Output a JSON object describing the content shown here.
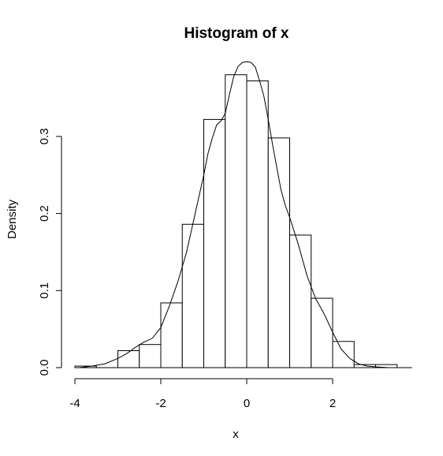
{
  "chart_data": {
    "type": "bar",
    "title": "Histogram of x",
    "xlabel": "x",
    "ylabel": "Density",
    "xlim": [
      -4,
      4
    ],
    "ylim": [
      0,
      0.4
    ],
    "x_ticks": [
      -4,
      -2,
      0,
      2
    ],
    "x_tick_labels": [
      "-4",
      "-2",
      "0",
      "2"
    ],
    "y_ticks": [
      0.0,
      0.1,
      0.2,
      0.3
    ],
    "y_tick_labels": [
      "0.0",
      "0.1",
      "0.2",
      "0.3"
    ],
    "grid": false,
    "bins": [
      {
        "x0": -4.0,
        "x1": -3.5,
        "density": 0.002
      },
      {
        "x0": -3.5,
        "x1": -3.0,
        "density": 0.0
      },
      {
        "x0": -3.0,
        "x1": -2.5,
        "density": 0.022
      },
      {
        "x0": -2.5,
        "x1": -2.0,
        "density": 0.03
      },
      {
        "x0": -2.0,
        "x1": -1.5,
        "density": 0.084
      },
      {
        "x0": -1.5,
        "x1": -1.0,
        "density": 0.186
      },
      {
        "x0": -1.0,
        "x1": -0.5,
        "density": 0.322
      },
      {
        "x0": -0.5,
        "x1": 0.0,
        "density": 0.38
      },
      {
        "x0": 0.0,
        "x1": 0.5,
        "density": 0.372
      },
      {
        "x0": 0.5,
        "x1": 1.0,
        "density": 0.298
      },
      {
        "x0": 1.0,
        "x1": 1.5,
        "density": 0.172
      },
      {
        "x0": 1.5,
        "x1": 2.0,
        "density": 0.09
      },
      {
        "x0": 2.0,
        "x1": 2.5,
        "density": 0.034
      },
      {
        "x0": 2.5,
        "x1": 3.0,
        "density": 0.004
      },
      {
        "x0": 3.0,
        "x1": 3.5,
        "density": 0.004
      }
    ],
    "density_curve": {
      "x": [
        -3.9,
        -3.6,
        -3.3,
        -3.0,
        -2.8,
        -2.6,
        -2.4,
        -2.2,
        -2.0,
        -1.8,
        -1.6,
        -1.4,
        -1.2,
        -1.0,
        -0.9,
        -0.8,
        -0.7,
        -0.6,
        -0.5,
        -0.4,
        -0.3,
        -0.2,
        -0.1,
        0.0,
        0.1,
        0.2,
        0.3,
        0.4,
        0.5,
        0.6,
        0.7,
        0.8,
        0.9,
        1.0,
        1.2,
        1.4,
        1.6,
        1.8,
        2.0,
        2.2,
        2.4,
        2.6,
        2.8,
        3.0,
        3.3,
        3.6
      ],
      "y": [
        0.0,
        0.002,
        0.005,
        0.012,
        0.018,
        0.026,
        0.033,
        0.038,
        0.052,
        0.08,
        0.112,
        0.15,
        0.2,
        0.25,
        0.278,
        0.298,
        0.315,
        0.32,
        0.33,
        0.355,
        0.378,
        0.391,
        0.396,
        0.397,
        0.396,
        0.39,
        0.372,
        0.352,
        0.322,
        0.29,
        0.26,
        0.23,
        0.21,
        0.195,
        0.16,
        0.12,
        0.09,
        0.07,
        0.046,
        0.024,
        0.012,
        0.005,
        0.002,
        0.001,
        0.0,
        0.0
      ]
    }
  }
}
